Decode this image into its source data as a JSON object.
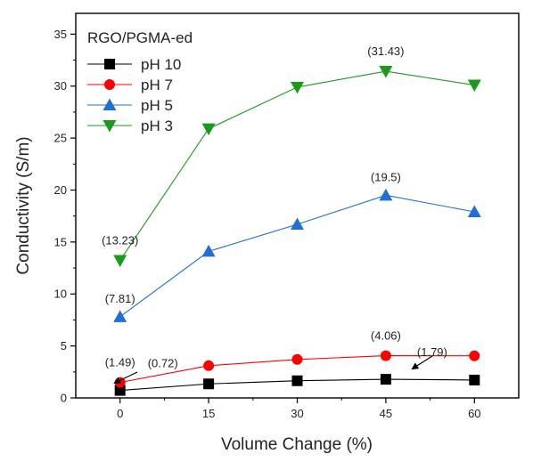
{
  "chart_data": {
    "type": "line",
    "title": "",
    "xlabel": "Volume Change (%)",
    "ylabel": "Conductivity (S/m)",
    "x": [
      0,
      15,
      30,
      45,
      60
    ],
    "xlim": [
      -7.5,
      67.5
    ],
    "ylim": [
      0,
      37
    ],
    "xticks": [
      "0",
      "15",
      "30",
      "45",
      "60"
    ],
    "yticks": [
      "0",
      "5",
      "10",
      "15",
      "20",
      "25",
      "30",
      "35"
    ],
    "grid": false,
    "legend_title": "RGO/PGMA-ed",
    "legend_position": "top-left",
    "series": [
      {
        "name": "pH 10",
        "values": [
          0.72,
          1.35,
          1.65,
          1.79,
          1.72
        ],
        "color": "#000000",
        "marker": "square"
      },
      {
        "name": "pH 7",
        "values": [
          1.49,
          3.1,
          3.7,
          4.06,
          4.05
        ],
        "color": "#ff0000",
        "marker": "circle"
      },
      {
        "name": "pH 5",
        "values": [
          7.81,
          14.1,
          16.7,
          19.5,
          17.9
        ],
        "color": "#1f6fd6",
        "marker": "triangle-up"
      },
      {
        "name": "pH 3",
        "values": [
          13.23,
          25.9,
          29.9,
          31.43,
          30.1
        ],
        "color": "#1a9a1a",
        "marker": "triangle-down"
      }
    ],
    "annotations": [
      {
        "text": "(13.23)",
        "x": 0,
        "y": 13.23
      },
      {
        "text": "(7.81)",
        "x": 0,
        "y": 7.81
      },
      {
        "text": "(1.49)",
        "x": 0,
        "y": 1.49
      },
      {
        "text": "(0.72)",
        "x": 0,
        "y": 0.72
      },
      {
        "text": "(31.43)",
        "x": 45,
        "y": 31.43
      },
      {
        "text": "(19.5)",
        "x": 45,
        "y": 19.5
      },
      {
        "text": "(4.06)",
        "x": 45,
        "y": 4.06
      },
      {
        "text": "(1.79)",
        "x": 45,
        "y": 1.79
      }
    ]
  }
}
